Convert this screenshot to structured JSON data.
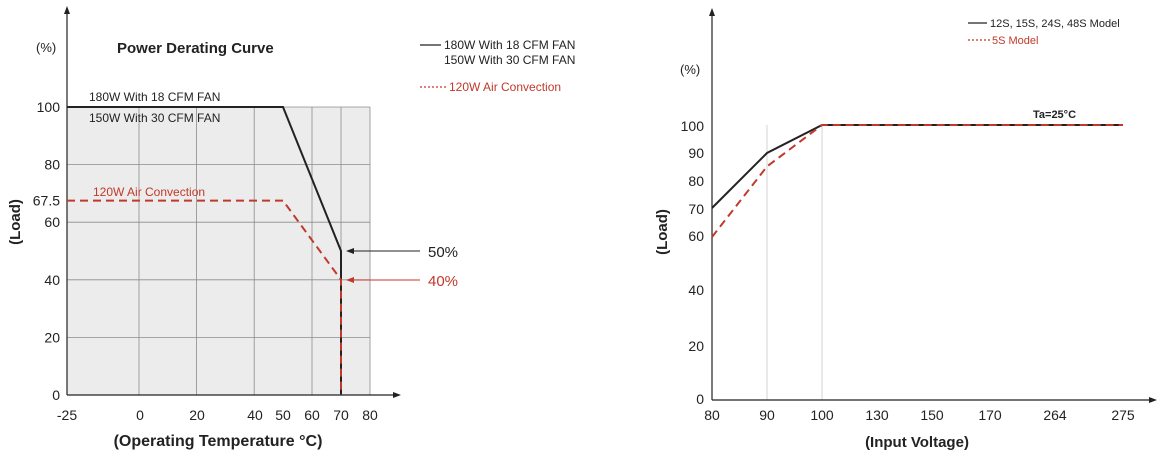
{
  "chart_data": [
    {
      "type": "line",
      "title": "Power Derating Curve",
      "ylabel": "(Load)",
      "yunit": "(%)",
      "xlabel": "(Operating Temperature °C)",
      "x_ticks": [
        "-25",
        "0",
        "20",
        "40",
        "50",
        "60",
        "70",
        "80"
      ],
      "y_ticks": [
        "0",
        "20",
        "40",
        "60",
        "67.5",
        "80",
        "100"
      ],
      "legend": [
        {
          "style": "solid",
          "color": "#222222",
          "line1": "180W With 18 CFM FAN",
          "line2": "150W With 30 CFM FAN"
        },
        {
          "style": "dotted",
          "color": "#c0392b",
          "line1": "120W Air Convection"
        }
      ],
      "series": [
        {
          "color": "#222222",
          "style": "solid",
          "label1": "180W With 18 CFM FAN",
          "label2": "150W With 30 CFM FAN",
          "points": [
            [
              -25,
              100
            ],
            [
              50,
              100
            ],
            [
              70,
              50
            ],
            [
              70,
              0
            ]
          ]
        },
        {
          "color": "#c0392b",
          "style": "dashed",
          "label1": "120W Air Convection",
          "points": [
            [
              -25,
              67.5
            ],
            [
              50,
              67.5
            ],
            [
              70,
              40
            ],
            [
              70,
              0
            ]
          ]
        }
      ],
      "annotations": [
        {
          "text": "50%",
          "value": 50,
          "color": "#222222"
        },
        {
          "text": "40%",
          "value": 40,
          "color": "#c0392b"
        }
      ]
    },
    {
      "type": "line",
      "ylabel": "(Load)",
      "yunit": "(%)",
      "xlabel": "(Input Voltage)",
      "x_ticks": [
        "80",
        "90",
        "100",
        "130",
        "150",
        "170",
        "264",
        "275"
      ],
      "y_ticks": [
        "0",
        "20",
        "40",
        "60",
        "70",
        "80",
        "90",
        "100"
      ],
      "legend": [
        {
          "style": "solid",
          "color": "#222222",
          "text": "12S, 15S, 24S, 48S Model"
        },
        {
          "style": "dotted",
          "color": "#c0392b",
          "text": "5S Model"
        }
      ],
      "annotation": "Ta=25°C",
      "series": [
        {
          "name": "12S, 15S, 24S, 48S Model",
          "color": "#222222",
          "style": "solid",
          "points": [
            [
              "80",
              70
            ],
            [
              "90",
              90
            ],
            [
              "100",
              100
            ],
            [
              "275",
              100
            ]
          ]
        },
        {
          "name": "5S Model",
          "color": "#c0392b",
          "style": "dashed",
          "points": [
            [
              "80",
              60
            ],
            [
              "90",
              85
            ],
            [
              "100",
              100
            ],
            [
              "275",
              100
            ]
          ]
        }
      ]
    }
  ]
}
